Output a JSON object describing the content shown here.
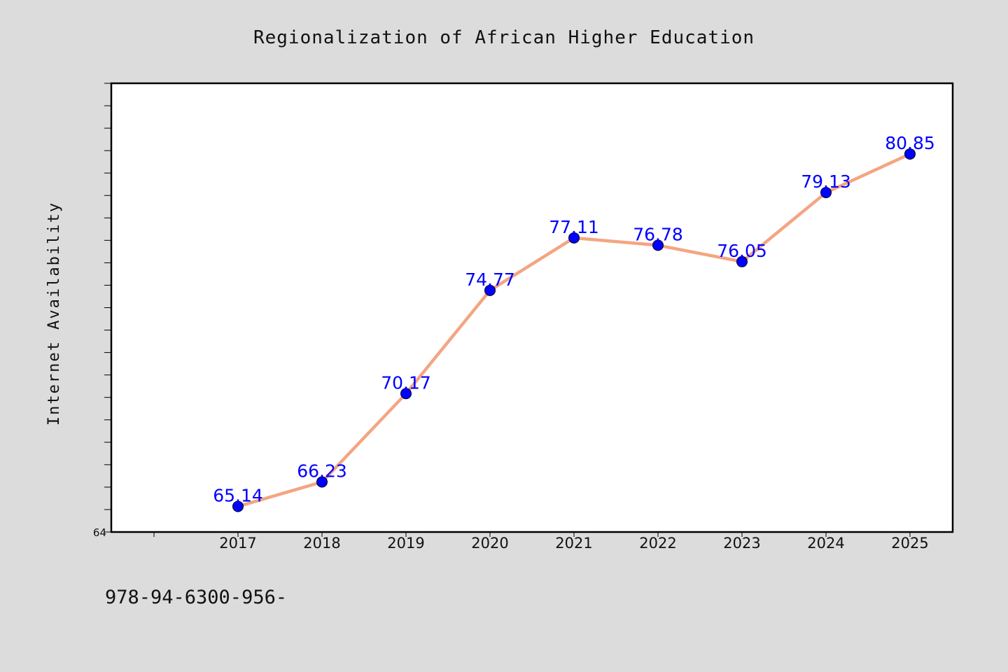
{
  "chart_data": {
    "type": "line",
    "title": "Regionalization of African Higher Education",
    "xlabel": "",
    "ylabel": "Internet Availability",
    "x": [
      "2017",
      "2018",
      "2019",
      "2020",
      "2021",
      "2022",
      "2023",
      "2024",
      "2025"
    ],
    "series": [
      {
        "values": [
          65.14,
          66.23,
          70.17,
          74.77,
          77.11,
          76.78,
          76.05,
          79.13,
          80.85
        ]
      }
    ],
    "data_labels": [
      "65.14",
      "66.23",
      "70.17",
      "74.77",
      "77.11",
      "76.78",
      "76.05",
      "79.13",
      "80.85"
    ],
    "y_tick_labels": [
      "64"
    ],
    "ylim": [
      64,
      84
    ],
    "grid": false,
    "colors": {
      "line": "#f4a582",
      "marker": "#0000ff",
      "label": "#0000ff",
      "background": "#dcdcdc",
      "plot_bg": "#ffffff"
    }
  },
  "footer": {
    "text": "978-94-6300-956-"
  }
}
